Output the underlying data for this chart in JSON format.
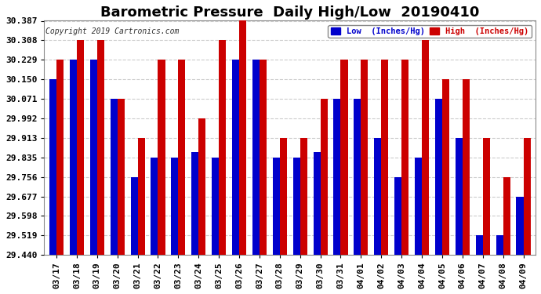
{
  "title": "Barometric Pressure  Daily High/Low  20190410",
  "copyright": "Copyright 2019 Cartronics.com",
  "legend_low": "Low  (Inches/Hg)",
  "legend_high": "High  (Inches/Hg)",
  "low_color": "#0000cc",
  "high_color": "#cc0000",
  "background_color": "#ffffff",
  "yticks": [
    29.44,
    29.519,
    29.598,
    29.677,
    29.756,
    29.835,
    29.913,
    29.992,
    30.071,
    30.15,
    30.229,
    30.308,
    30.387
  ],
  "ylim": [
    29.44,
    30.387
  ],
  "categories": [
    "03/17",
    "03/18",
    "03/19",
    "03/20",
    "03/21",
    "03/22",
    "03/23",
    "03/24",
    "03/25",
    "03/26",
    "03/27",
    "03/28",
    "03/29",
    "03/30",
    "03/31",
    "04/01",
    "04/02",
    "04/03",
    "04/04",
    "04/05",
    "04/06",
    "04/07",
    "04/08",
    "04/09"
  ],
  "low_values": [
    30.15,
    30.229,
    30.229,
    30.071,
    29.756,
    29.835,
    29.835,
    29.856,
    29.835,
    30.229,
    30.229,
    29.835,
    29.835,
    29.856,
    30.071,
    30.071,
    29.913,
    29.756,
    29.835,
    30.071,
    29.913,
    29.519,
    29.519,
    29.677
  ],
  "high_values": [
    30.229,
    30.308,
    30.308,
    30.071,
    29.913,
    30.229,
    30.229,
    29.992,
    30.308,
    30.387,
    30.229,
    29.913,
    29.913,
    30.071,
    30.229,
    30.229,
    30.229,
    30.229,
    30.308,
    30.15,
    30.15,
    29.913,
    29.756,
    29.913
  ],
  "grid_color": "#cccccc",
  "title_fontsize": 13,
  "tick_fontsize": 8,
  "bar_width": 0.35
}
